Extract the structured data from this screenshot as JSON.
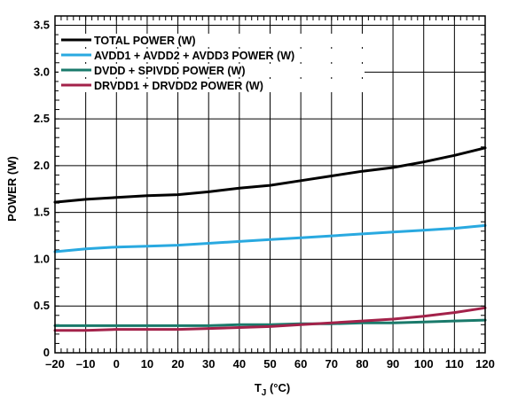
{
  "chart_data": {
    "type": "line",
    "xlabel": "T",
    "xlabel_sub": "J",
    "xlabel_unit": " (°C)",
    "ylabel": "POWER (W)",
    "xlim": [
      -20,
      120
    ],
    "ylim": [
      0,
      3.6
    ],
    "x_ticks": [
      "–20",
      "–10",
      "0",
      "10",
      "20",
      "30",
      "40",
      "50",
      "60",
      "70",
      "80",
      "90",
      "100",
      "110",
      "120"
    ],
    "x_tick_values": [
      -20,
      -10,
      0,
      10,
      20,
      30,
      40,
      50,
      60,
      70,
      80,
      90,
      100,
      110,
      120
    ],
    "y_ticks": [
      "0",
      "0.5",
      "1.0",
      "1.5",
      "2.0",
      "2.5",
      "3.0",
      "3.5"
    ],
    "y_tick_values": [
      0,
      0.5,
      1.0,
      1.5,
      2.0,
      2.5,
      3.0,
      3.5
    ],
    "grid": true,
    "legend_position": "top-left",
    "x": [
      -20,
      -10,
      0,
      10,
      20,
      30,
      40,
      50,
      60,
      70,
      80,
      90,
      100,
      110,
      120
    ],
    "series": [
      {
        "name": "TOTAL POWER (W)",
        "color": "#000000",
        "values": [
          1.61,
          1.64,
          1.66,
          1.68,
          1.69,
          1.72,
          1.76,
          1.79,
          1.84,
          1.89,
          1.94,
          1.98,
          2.04,
          2.11,
          2.19
        ]
      },
      {
        "name": "AVDD1 + AVDD2 + AVDD3 POWER (W)",
        "color": "#29a9e0",
        "values": [
          1.08,
          1.11,
          1.13,
          1.14,
          1.15,
          1.17,
          1.19,
          1.21,
          1.23,
          1.25,
          1.27,
          1.29,
          1.31,
          1.33,
          1.36
        ]
      },
      {
        "name": "DVDD + SPIVDD POWER (W)",
        "color": "#1a7a6b",
        "values": [
          0.29,
          0.29,
          0.29,
          0.29,
          0.29,
          0.29,
          0.3,
          0.3,
          0.31,
          0.31,
          0.32,
          0.32,
          0.33,
          0.34,
          0.35
        ]
      },
      {
        "name": "DRVDD1 + DRVDD2 POWER (W)",
        "color": "#a3224a",
        "values": [
          0.24,
          0.24,
          0.25,
          0.25,
          0.25,
          0.26,
          0.27,
          0.28,
          0.3,
          0.32,
          0.34,
          0.36,
          0.39,
          0.43,
          0.48
        ]
      }
    ]
  }
}
